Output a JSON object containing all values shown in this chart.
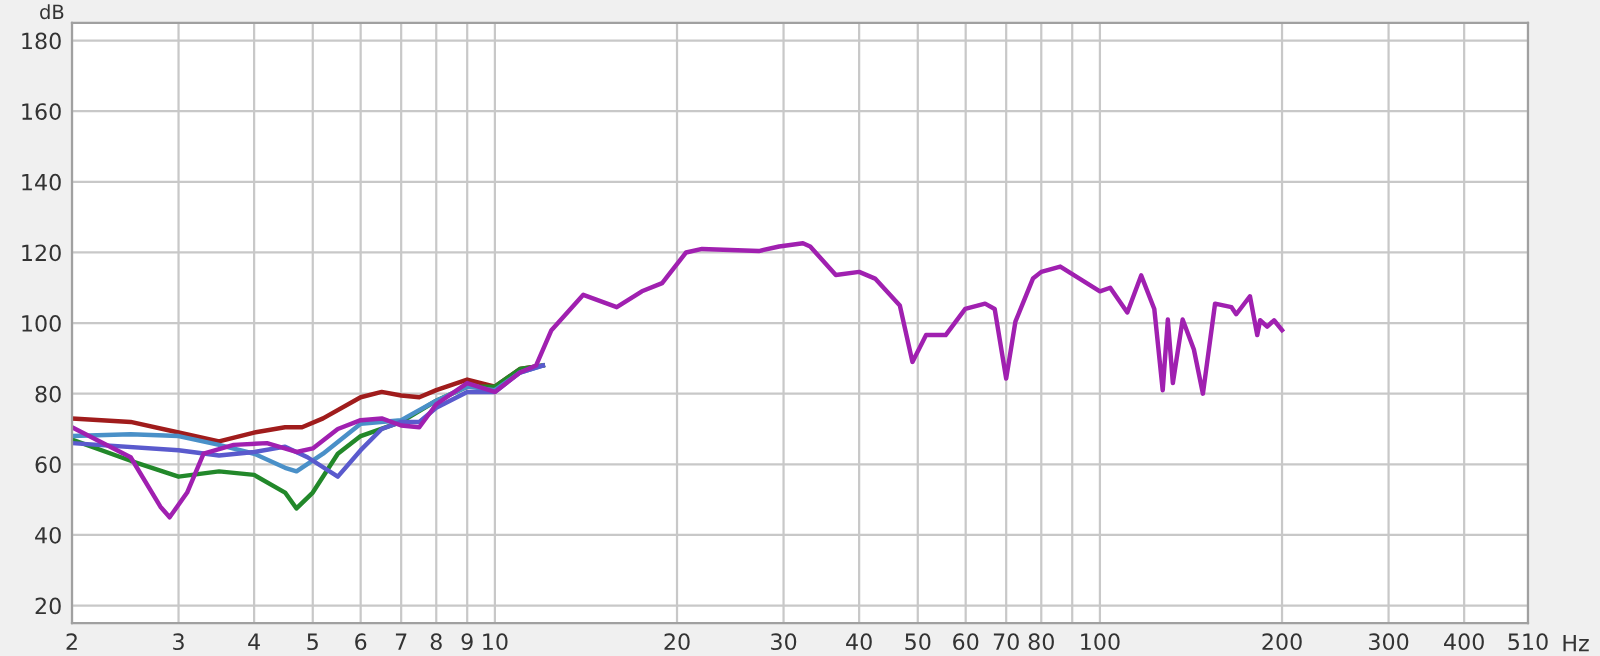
{
  "chart_data": {
    "type": "line",
    "xlabel": "Hz",
    "ylabel": "dB",
    "log": "x",
    "grid": true,
    "line_style": "solid",
    "marker": "none",
    "xlim": [
      2,
      510
    ],
    "ylim": [
      15,
      185
    ],
    "xticks": [
      2,
      3,
      4,
      5,
      6,
      7,
      8,
      9,
      10,
      20,
      30,
      40,
      50,
      60,
      70,
      80,
      {
        "value": 90,
        "label": null
      },
      100,
      200,
      300,
      400,
      510
    ],
    "yticks": [
      20,
      40,
      60,
      80,
      100,
      120,
      140,
      160,
      180
    ],
    "series": [
      {
        "color": "#a01c1c",
        "x": [
          2,
          2.5,
          3,
          3.5,
          4,
          4.5,
          4.8,
          5.2,
          6,
          6.5,
          7,
          7.5,
          8,
          9,
          10,
          11,
          12
        ],
        "values": [
          73,
          72,
          69,
          66.5,
          69,
          70.5,
          70.5,
          73,
          79,
          80.5,
          79.5,
          79,
          81,
          84,
          82,
          87,
          88
        ]
      },
      {
        "color": "#22882a",
        "x": [
          2,
          2.5,
          3,
          3.5,
          4,
          4.5,
          4.7,
          5,
          5.5,
          6,
          7,
          8,
          9,
          10,
          11,
          12
        ],
        "values": [
          67,
          61,
          56.5,
          58,
          57,
          52,
          47.5,
          52,
          63,
          68,
          72,
          78,
          82,
          82,
          87,
          88
        ]
      },
      {
        "color": "#4a90c8",
        "x": [
          2,
          2.5,
          3,
          3.5,
          4,
          4.5,
          4.7,
          5.2,
          6,
          7,
          8,
          9,
          10,
          11,
          12
        ],
        "values": [
          68,
          68.5,
          68,
          65.5,
          63,
          59,
          58,
          63,
          71.5,
          72.5,
          78,
          82,
          81,
          86,
          88
        ]
      },
      {
        "color": "#5a5acd",
        "x": [
          2,
          3,
          3.5,
          4,
          4.5,
          4.9,
          5.5,
          6,
          6.5,
          7,
          7.5,
          8,
          9,
          10,
          11,
          12
        ],
        "values": [
          66,
          64,
          62.5,
          63.5,
          65,
          62,
          56.5,
          64,
          70,
          72,
          72,
          76,
          80.5,
          80.5,
          86,
          88
        ]
      },
      {
        "color": "#a020b0",
        "x": [
          2,
          2.5,
          2.8,
          2.9,
          3.1,
          3.3,
          3.7,
          4.2,
          4.7,
          5,
          5.5,
          6,
          6.5,
          7,
          7.5,
          8,
          9,
          10,
          11,
          11.7,
          12.4,
          14,
          15.9,
          17.5,
          18.9,
          20.7,
          22,
          27.3,
          29.5,
          32.3,
          33.2,
          36.6,
          40,
          42.5,
          46.7,
          49,
          51.6,
          55.6,
          59.9,
          64.6,
          67,
          70,
          72.5,
          77.5,
          80,
          86,
          100,
          104,
          111,
          117,
          123,
          127,
          129.5,
          132,
          137,
          143,
          148,
          155,
          165,
          168,
          177,
          182,
          184,
          189,
          194,
          200
        ],
        "values": [
          70.5,
          62,
          48,
          45,
          52,
          63,
          65.5,
          66,
          63.5,
          64.5,
          70,
          72.5,
          73,
          71,
          70.5,
          77,
          83,
          80.5,
          86,
          88,
          98,
          108,
          104.5,
          109,
          111.3,
          120,
          121,
          120.4,
          121.7,
          122.6,
          121.7,
          113.6,
          114.5,
          112.6,
          105,
          89,
          96.6,
          96.6,
          104,
          105.5,
          104,
          84.3,
          100.4,
          112.6,
          114.5,
          116,
          109,
          110,
          103,
          113.5,
          104,
          81,
          101,
          83,
          101,
          92.5,
          80,
          105.5,
          104.5,
          102.5,
          107.6,
          96.6,
          100.8,
          99,
          100.8,
          98
        ]
      }
    ]
  }
}
